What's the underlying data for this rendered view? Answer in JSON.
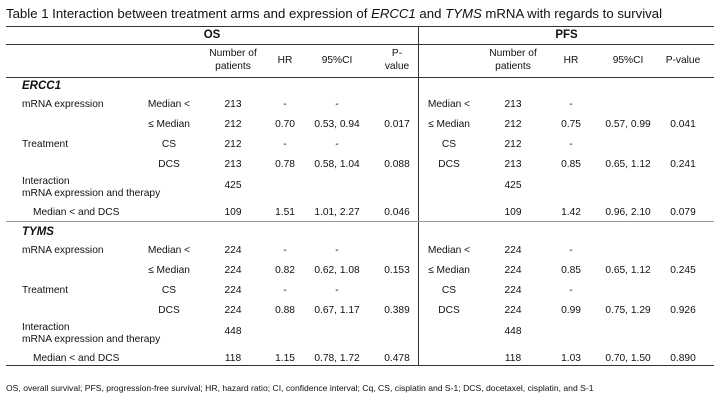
{
  "caption": {
    "prefix": "Table 1 Interaction between treatment arms and expression of ",
    "gene1": "ERCC1",
    "mid": " and ",
    "gene2": "TYMS",
    "suffix": " mRNA with regards to survival"
  },
  "groups": {
    "os": "OS",
    "pfs": "PFS"
  },
  "headers": {
    "n_line1": "Number of",
    "n_line2": "patients",
    "hr": "HR",
    "ci": "95%CI",
    "p_line1": "P-",
    "p_line2": "value",
    "p_single": "P-value"
  },
  "sections": [
    {
      "gene": "ERCC1",
      "rows": [
        {
          "label": "mRNA expression",
          "sub": "Median <",
          "os": [
            "213",
            "-",
            "-",
            ""
          ],
          "pfs_sub": "Median <",
          "pfs": [
            "213",
            "-",
            "",
            ""
          ]
        },
        {
          "label": "",
          "sub": "≤ Median",
          "os": [
            "212",
            "0.70",
            "0.53, 0.94",
            "0.017"
          ],
          "pfs_sub": "≤ Median",
          "pfs": [
            "212",
            "0.75",
            "0.57, 0.99",
            "0.041"
          ]
        },
        {
          "label": "Treatment",
          "sub": "CS",
          "os": [
            "212",
            "-",
            "-",
            ""
          ],
          "pfs_sub": "CS",
          "pfs": [
            "212",
            "-",
            "",
            ""
          ]
        },
        {
          "label": "",
          "sub": "DCS",
          "os": [
            "213",
            "0.78",
            "0.58, 1.04",
            "0.088"
          ],
          "pfs_sub": "DCS",
          "pfs": [
            "213",
            "0.85",
            "0.65, 1.12",
            "0.241"
          ]
        },
        {
          "label": "Interaction",
          "label2": "mRNA expression and therapy",
          "sub": "",
          "os": [
            "425",
            "",
            "",
            ""
          ],
          "pfs_sub": "",
          "pfs": [
            "425",
            "",
            "",
            ""
          ]
        },
        {
          "label": "Median < and    DCS",
          "sub": "",
          "os": [
            "109",
            "1.51",
            "1.01, 2.27",
            "0.046"
          ],
          "pfs_sub": "",
          "pfs": [
            "109",
            "1.42",
            "0.96, 2.10",
            "0.079"
          ]
        }
      ]
    },
    {
      "gene": "TYMS",
      "rows": [
        {
          "label": "mRNA expression",
          "sub": "Median <",
          "os": [
            "224",
            "-",
            "-",
            ""
          ],
          "pfs_sub": "Median <",
          "pfs": [
            "224",
            "-",
            "",
            ""
          ]
        },
        {
          "label": "",
          "sub": "≤ Median",
          "os": [
            "224",
            "0.82",
            "0.62, 1.08",
            "0.153"
          ],
          "pfs_sub": "≤ Median",
          "pfs": [
            "224",
            "0.85",
            "0.65, 1.12",
            "0.245"
          ]
        },
        {
          "label": "Treatment",
          "sub": "CS",
          "os": [
            "224",
            "-",
            "-",
            ""
          ],
          "pfs_sub": "CS",
          "pfs": [
            "224",
            "-",
            "",
            ""
          ]
        },
        {
          "label": "",
          "sub": "DCS",
          "os": [
            "224",
            "0.88",
            "0.67, 1.17",
            "0.389"
          ],
          "pfs_sub": "DCS",
          "pfs": [
            "224",
            "0.99",
            "0.75, 1.29",
            "0.926"
          ]
        },
        {
          "label": "Interaction",
          "label2": "mRNA expression and therapy",
          "sub": "",
          "os": [
            "448",
            "",
            "",
            ""
          ],
          "pfs_sub": "",
          "pfs": [
            "448",
            "",
            "",
            ""
          ]
        },
        {
          "label": "Median < and DCS",
          "sub": "",
          "os": [
            "118",
            "1.15",
            "0.78, 1.72",
            "0.478"
          ],
          "pfs_sub": "",
          "pfs": [
            "118",
            "1.03",
            "0.70, 1.50",
            "0.890"
          ]
        }
      ]
    }
  ],
  "footnote": "OS, overall survival; PFS, progression-free survival; HR, hazard ratio; CI, confidence interval; Cq, CS, cisplatin and S-1; DCS, docetaxel, cisplatin, and S-1"
}
